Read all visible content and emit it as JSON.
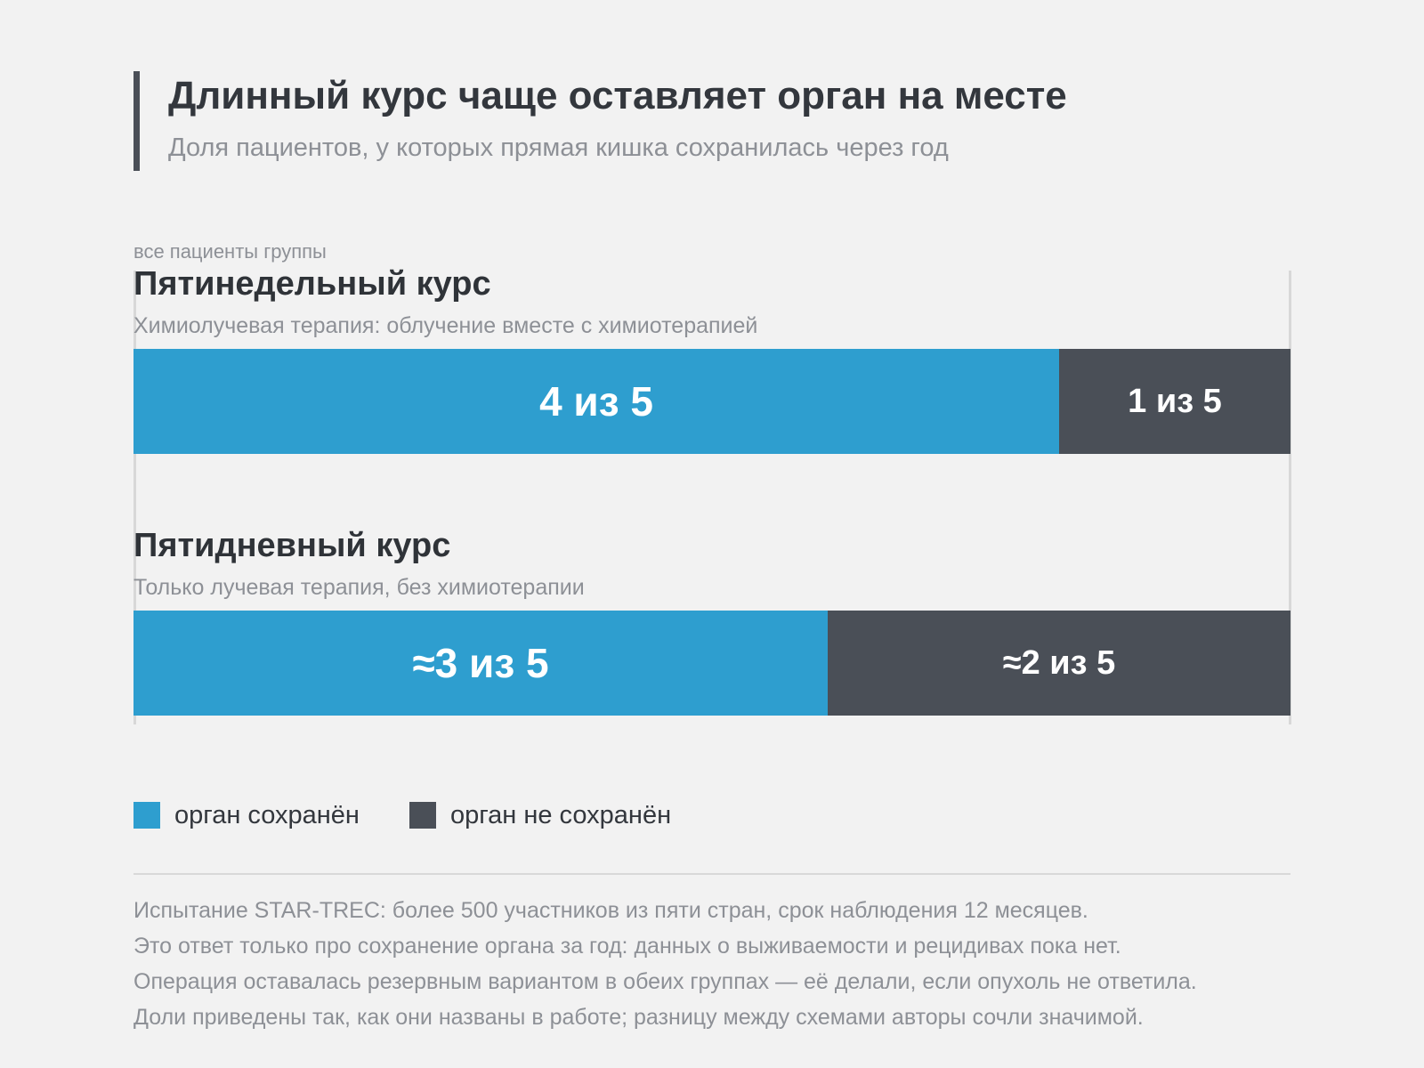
{
  "header": {
    "title": "Длинный курс чаще оставляет орган на месте",
    "subtitle": "Доля пациентов, у которых прямая кишка сохранилась через год"
  },
  "chart_data": {
    "type": "bar",
    "stacked": true,
    "orientation": "horizontal",
    "scale_label": "все пациенты группы",
    "xlim": [
      0,
      1
    ],
    "categories": [
      "Пятинедельный курс",
      "Пятидневный курс"
    ],
    "category_descriptions": [
      "Химиолучевая терапия: облучение вместе с химиотерапией",
      "Только лучевая терапия, без химиотерапии"
    ],
    "series": [
      {
        "name": "орган сохранён",
        "color": "#2e9ecf",
        "values": [
          0.8,
          0.6
        ],
        "labels": [
          "4 из 5",
          "≈3 из 5"
        ]
      },
      {
        "name": "орган не сохранён",
        "color": "#4a4f57",
        "values": [
          0.2,
          0.4
        ],
        "labels": [
          "1 из 5",
          "≈2 из 5"
        ]
      }
    ],
    "legend_position": "bottom-left",
    "grid": false
  },
  "notes": [
    "Испытание STAR-TREC: более 500 участников из пяти стран, срок наблюдения 12 месяцев.",
    "Это ответ только про сохранение органа за год: данных о выживаемости и рецидивах пока нет.",
    "Операция оставалась резервным вариантом в обеих группах — её делали, если опухоль не ответила.",
    "Доли приведены так, как они названы в работе; разницу между схемами авторы сочли значимой."
  ]
}
